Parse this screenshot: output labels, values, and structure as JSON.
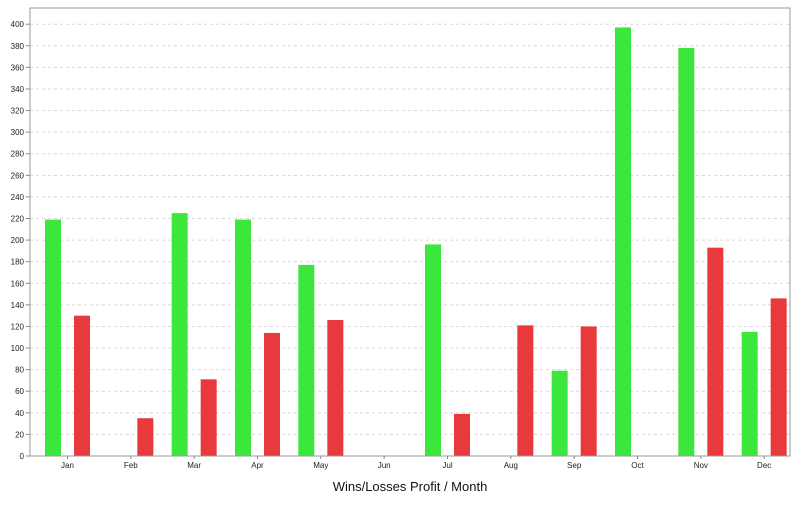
{
  "chart_data": {
    "type": "bar",
    "title": "",
    "xlabel": "Wins/Losses Profit / Month",
    "ylabel": "",
    "categories": [
      "Jan",
      "Feb",
      "Mar",
      "Apr",
      "May",
      "Jun",
      "Jul",
      "Aug",
      "Sep",
      "Oct",
      "Nov",
      "Dec"
    ],
    "series": [
      {
        "color": "#3de63d",
        "values": [
          219,
          0,
          225,
          219,
          177,
          0,
          196,
          0,
          79,
          397,
          378,
          115
        ]
      },
      {
        "color": "#e8393c",
        "values": [
          130,
          35,
          71,
          114,
          126,
          0,
          39,
          121,
          120,
          0,
          193,
          146
        ]
      }
    ],
    "ylim": [
      0,
      415
    ],
    "yticks": [
      0,
      20,
      40,
      60,
      80,
      100,
      120,
      140,
      160,
      180,
      200,
      220,
      240,
      260,
      280,
      300,
      320,
      340,
      360,
      380,
      400
    ],
    "grid": true,
    "legend": "none"
  }
}
